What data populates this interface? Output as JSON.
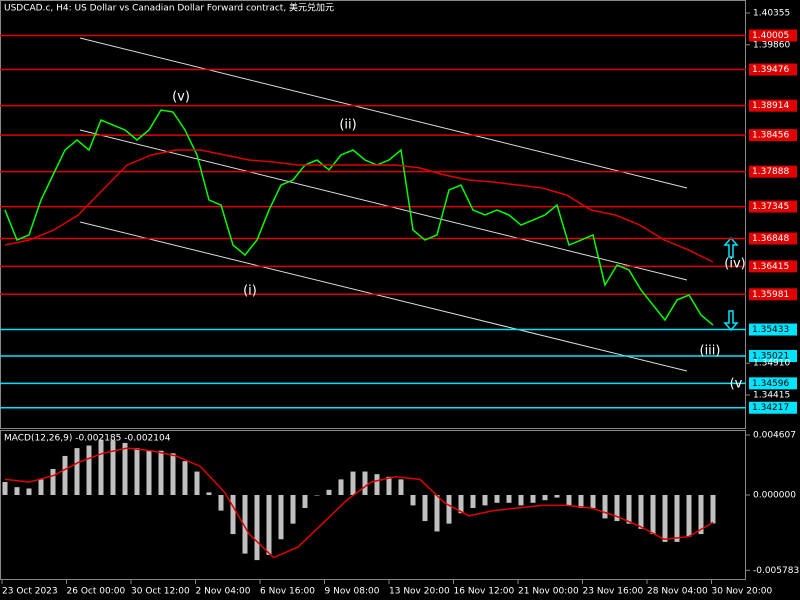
{
  "chart_data": [
    {
      "type": "line",
      "title": "USDCAD.c, H4:  US Dollar vs Canadian Dollar Forward contract, 美元兑加元",
      "x_labels": [
        "23 Oct 2023",
        "26 Oct 00:00",
        "30 Oct 12:00",
        "2 Nov 04:00",
        "6 Nov 16:00",
        "9 Nov 08:00",
        "13 Nov 20:00",
        "16 Nov 12:00",
        "21 Nov 00:00",
        "23 Nov 16:00",
        "28 Nov 04:00",
        "30 Nov 20:00"
      ],
      "ylim": [
        1.33902,
        1.40557
      ],
      "yticks": [
        1.40355,
        {
          "value": 1.3986,
          "label": "1.39860"
        },
        {
          "value": 1.3491,
          "label": "1.34910"
        },
        1.34415
      ],
      "series": [
        {
          "color": "#00ff00",
          "values": [
            1.37291,
            1.36825,
            1.36903,
            1.37447,
            1.37836,
            1.38224,
            1.3838,
            1.38224,
            1.38691,
            1.38613,
            1.38536,
            1.3838,
            1.38536,
            1.38846,
            1.38815,
            1.38536,
            1.38147,
            1.37447,
            1.37369,
            1.36747,
            1.36592,
            1.36825,
            1.37291,
            1.3768,
            1.37758,
            1.37991,
            1.38069,
            1.37914,
            1.38147,
            1.38224,
            1.38069,
            1.37991,
            1.38069,
            1.38224,
            1.36981,
            1.36825,
            1.36903,
            1.37603,
            1.3768,
            1.37291,
            1.37214,
            1.37291,
            1.37214,
            1.37058,
            1.37136,
            1.37214,
            1.37369,
            1.36747,
            1.36825,
            1.36903,
            1.36125,
            1.36436,
            1.36359,
            1.36048,
            1.35814,
            1.35581,
            1.35892,
            1.3597,
            1.35659,
            1.35503
          ]
        },
        {
          "color": "#e00000",
          "values": [
            1.36747,
            1.36825,
            1.36981,
            1.37214,
            1.37603,
            1.37991,
            1.38147,
            1.38224,
            1.38224,
            1.38147,
            1.38069,
            1.38038,
            1.37991,
            1.37991,
            1.37991,
            1.37991,
            1.37991,
            1.37945,
            1.37836,
            1.37758,
            1.37727,
            1.3768,
            1.37634,
            1.37525,
            1.37291,
            1.37214,
            1.37058,
            1.36825,
            1.3667,
            1.36483
          ]
        }
      ],
      "levels": [
        {
          "value": 1.40005,
          "color": "#e00000"
        },
        {
          "value": 1.39476,
          "color": "#e00000"
        },
        {
          "value": 1.38914,
          "color": "#e00000"
        },
        {
          "value": 1.38456,
          "color": "#e00000"
        },
        {
          "value": 1.37888,
          "color": "#e00000"
        },
        {
          "value": 1.37345,
          "color": "#e00000"
        },
        {
          "value": 1.36848,
          "color": "#e00000"
        },
        {
          "value": 1.36415,
          "color": "#e00000"
        },
        {
          "value": 1.35981,
          "color": "#e00000"
        },
        {
          "value": 1.35433,
          "color": "#00e5ff"
        },
        {
          "value": 1.35021,
          "color": "#00e5ff"
        },
        {
          "value": 1.34596,
          "color": "#00e5ff"
        },
        {
          "value": 1.34217,
          "color": "#00e5ff"
        }
      ],
      "annotations": [
        "(v)",
        "(ii)",
        "(i)",
        "(iii)",
        "(iv)",
        "(v"
      ]
    },
    {
      "type": "bar",
      "title": "MACD(12,26,9) -0.002185 -0.002104",
      "ylim": [
        -0.006527,
        0.004991
      ],
      "yticks": [
        0.004607,
        {
          "value": 0,
          "label": "0.000000"
        },
        -0.005783
      ],
      "color": "#c0c0c0",
      "values": [
        0.001,
        0.0006,
        0.0005,
        0.0012,
        0.002,
        0.003,
        0.0036,
        0.0038,
        0.0042,
        0.0042,
        0.004,
        0.0036,
        0.0034,
        0.0034,
        0.0032,
        0.0026,
        0.0018,
        0.0002,
        -0.0012,
        -0.003,
        -0.0045,
        -0.005,
        -0.0046,
        -0.0034,
        -0.0022,
        -0.001,
        0,
        0.0004,
        0.0012,
        0.0018,
        0.0018,
        0.0016,
        0.0014,
        0.0012,
        -0.0008,
        -0.002,
        -0.0028,
        -0.0022,
        -0.0014,
        -0.001,
        -0.0008,
        -0.0006,
        -0.0006,
        -0.0008,
        -0.0006,
        -0.0004,
        -0.0002,
        -0.0008,
        -0.001,
        -0.001,
        -0.0018,
        -0.002,
        -0.0022,
        -0.0026,
        -0.003,
        -0.0036,
        -0.0036,
        -0.0032,
        -0.003,
        -0.002185
      ],
      "series": [
        {
          "color": "#e00000",
          "values": [
            0.0012,
            0.001,
            0.0015,
            0.0025,
            0.0032,
            0.0036,
            0.0034,
            0.003,
            0.0022,
            0.0002,
            -0.003,
            -0.0048,
            -0.004,
            -0.0022,
            -0.0004,
            0.001,
            0.0014,
            0.0012,
            -0.0006,
            -0.0016,
            -0.0012,
            -0.001,
            -0.0008,
            -0.0008,
            -0.001,
            -0.0016,
            -0.0024,
            -0.0034,
            -0.0032,
            -0.002104
          ]
        }
      ]
    }
  ]
}
